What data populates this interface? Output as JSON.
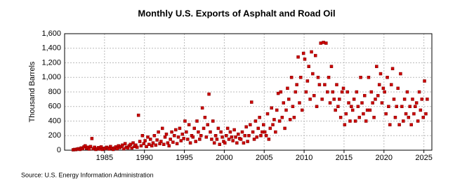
{
  "chart_data": {
    "type": "scatter",
    "title": "Monthly U.S. Exports of Asphalt and Road Oil",
    "y_label": "Thousand Barrels",
    "source": "Source: U.S. Energy Information Administration",
    "color": "#cc0000",
    "grid": true,
    "xlim": [
      1980,
      2026
    ],
    "xticks": [
      1985,
      1990,
      1995,
      2000,
      2005,
      2010,
      2015,
      2020,
      2025
    ],
    "ylim": [
      0,
      1600
    ],
    "yticks": [
      0,
      200,
      400,
      600,
      800,
      {
        "value": 1000,
        "label": "1,000"
      },
      {
        "value": 1200,
        "label": "1,200"
      },
      {
        "value": 1400,
        "label": "1,400"
      },
      {
        "value": 1600,
        "label": "1,600"
      }
    ],
    "x": [
      1981.08,
      1981.25,
      1981.42,
      1981.58,
      1981.75,
      1981.92,
      1982.08,
      1982.25,
      1982.42,
      1982.58,
      1982.75,
      1982.92,
      1983.08,
      1983.25,
      1983.42,
      1983.58,
      1983.75,
      1983.92,
      1984.08,
      1984.25,
      1984.42,
      1984.58,
      1984.75,
      1984.92,
      1985.08,
      1985.25,
      1985.42,
      1985.58,
      1985.75,
      1985.92,
      1986.08,
      1986.25,
      1986.42,
      1986.58,
      1986.75,
      1986.92,
      1987.08,
      1987.25,
      1987.42,
      1987.58,
      1987.75,
      1987.92,
      1988.08,
      1988.25,
      1988.42,
      1988.58,
      1988.75,
      1988.92,
      1989.08,
      1989.25,
      1989.42,
      1989.58,
      1989.75,
      1989.92,
      1990.08,
      1990.25,
      1990.42,
      1990.58,
      1990.75,
      1990.92,
      1991.08,
      1991.25,
      1991.42,
      1991.58,
      1991.75,
      1991.92,
      1992.08,
      1992.25,
      1992.42,
      1992.58,
      1992.75,
      1992.92,
      1993.08,
      1993.25,
      1993.42,
      1993.58,
      1993.75,
      1993.92,
      1994.08,
      1994.25,
      1994.42,
      1994.58,
      1994.75,
      1994.92,
      1995.08,
      1995.25,
      1995.42,
      1995.58,
      1995.75,
      1995.92,
      1996.08,
      1996.25,
      1996.42,
      1996.58,
      1996.75,
      1996.92,
      1997.08,
      1997.25,
      1997.42,
      1997.58,
      1997.75,
      1997.92,
      1998.08,
      1998.25,
      1998.42,
      1998.58,
      1998.75,
      1998.92,
      1999.08,
      1999.25,
      1999.42,
      1999.58,
      1999.75,
      1999.92,
      2000.08,
      2000.25,
      2000.42,
      2000.58,
      2000.75,
      2000.92,
      2001.08,
      2001.25,
      2001.42,
      2001.58,
      2001.75,
      2001.92,
      2002.08,
      2002.25,
      2002.42,
      2002.58,
      2002.75,
      2002.92,
      2003.08,
      2003.25,
      2003.42,
      2003.58,
      2003.75,
      2003.92,
      2004.08,
      2004.25,
      2004.42,
      2004.58,
      2004.75,
      2004.92,
      2005.08,
      2005.25,
      2005.42,
      2005.58,
      2005.75,
      2005.92,
      2006.08,
      2006.25,
      2006.42,
      2006.58,
      2006.75,
      2006.92,
      2007.08,
      2007.25,
      2007.42,
      2007.58,
      2007.75,
      2007.92,
      2008.08,
      2008.25,
      2008.42,
      2008.58,
      2008.75,
      2008.92,
      2009.08,
      2009.25,
      2009.42,
      2009.58,
      2009.75,
      2009.92,
      2010.08,
      2010.25,
      2010.42,
      2010.58,
      2010.75,
      2010.92,
      2011.08,
      2011.25,
      2011.42,
      2011.58,
      2011.75,
      2011.92,
      2012.08,
      2012.25,
      2012.42,
      2012.58,
      2012.75,
      2012.92,
      2013.08,
      2013.25,
      2013.42,
      2013.58,
      2013.75,
      2013.92,
      2014.08,
      2014.25,
      2014.42,
      2014.58,
      2014.75,
      2014.92,
      2015.08,
      2015.25,
      2015.42,
      2015.58,
      2015.75,
      2015.92,
      2016.08,
      2016.25,
      2016.42,
      2016.58,
      2016.75,
      2016.92,
      2017.08,
      2017.25,
      2017.42,
      2017.58,
      2017.75,
      2017.92,
      2018.08,
      2018.25,
      2018.42,
      2018.58,
      2018.75,
      2018.92,
      2019.08,
      2019.25,
      2019.42,
      2019.58,
      2019.75,
      2019.92,
      2020.08,
      2020.25,
      2020.42,
      2020.58,
      2020.75,
      2020.92,
      2021.08,
      2021.25,
      2021.42,
      2021.58,
      2021.75,
      2021.92,
      2022.08,
      2022.25,
      2022.42,
      2022.58,
      2022.75,
      2022.92,
      2023.08,
      2023.25,
      2023.42,
      2023.58,
      2023.75,
      2023.92,
      2024.08,
      2024.25,
      2024.42,
      2024.58,
      2024.75,
      2024.92,
      2025.08,
      2025.25,
      2025.42
    ],
    "values": [
      5,
      10,
      8,
      15,
      20,
      10,
      30,
      20,
      45,
      60,
      25,
      40,
      15,
      50,
      160,
      20,
      40,
      10,
      20,
      35,
      15,
      45,
      10,
      25,
      20,
      40,
      30,
      15,
      50,
      25,
      10,
      30,
      45,
      20,
      60,
      35,
      50,
      70,
      20,
      90,
      40,
      30,
      60,
      80,
      30,
      100,
      50,
      70,
      40,
      480,
      120,
      60,
      200,
      90,
      130,
      50,
      180,
      80,
      150,
      60,
      100,
      200,
      70,
      140,
      250,
      90,
      120,
      300,
      80,
      180,
      220,
      100,
      60,
      150,
      250,
      110,
      200,
      280,
      90,
      180,
      300,
      130,
      220,
      160,
      400,
      250,
      150,
      350,
      100,
      200,
      180,
      300,
      120,
      400,
      250,
      150,
      200,
      580,
      300,
      450,
      180,
      350,
      770,
      250,
      150,
      400,
      100,
      200,
      150,
      300,
      80,
      250,
      180,
      120,
      100,
      200,
      300,
      150,
      250,
      180,
      130,
      280,
      180,
      100,
      220,
      160,
      150,
      250,
      100,
      200,
      320,
      120,
      200,
      350,
      660,
      250,
      150,
      400,
      180,
      300,
      450,
      200,
      250,
      350,
      250,
      200,
      500,
      150,
      300,
      580,
      350,
      420,
      250,
      550,
      780,
      400,
      800,
      450,
      650,
      300,
      550,
      850,
      700,
      420,
      1000,
      600,
      450,
      800,
      900,
      1280,
      650,
      1000,
      550,
      1330,
      1250,
      800,
      950,
      1150,
      700,
      1350,
      1050,
      750,
      1300,
      600,
      1000,
      900,
      1470,
      700,
      1480,
      900,
      1470,
      800,
      1000,
      650,
      1150,
      800,
      700,
      550,
      900,
      600,
      700,
      450,
      800,
      850,
      350,
      500,
      800,
      650,
      400,
      600,
      550,
      700,
      400,
      800,
      600,
      450,
      1000,
      650,
      500,
      750,
      400,
      550,
      1000,
      550,
      800,
      650,
      450,
      700,
      1150,
      750,
      900,
      1050,
      650,
      850,
      800,
      500,
      1000,
      600,
      350,
      900,
      1120,
      700,
      450,
      600,
      850,
      350,
      1050,
      600,
      400,
      700,
      500,
      800,
      450,
      600,
      350,
      700,
      500,
      600,
      650,
      400,
      800,
      550,
      700,
      450,
      950,
      500,
      700
    ]
  }
}
